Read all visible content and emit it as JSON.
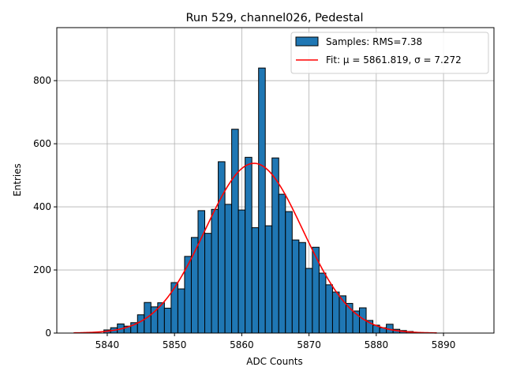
{
  "chart_data": {
    "type": "bar",
    "title": "Run 529, channel026, Pedestal",
    "xlabel": "ADC Counts",
    "ylabel": "Entries",
    "xlim": [
      5832.5,
      5897.5
    ],
    "ylim": [
      0,
      968
    ],
    "xticks": [
      5840,
      5850,
      5860,
      5870,
      5880,
      5890
    ],
    "yticks": [
      0,
      200,
      400,
      600,
      800
    ],
    "grid": true,
    "legend_position": "top-right",
    "series": [
      {
        "name": "Samples: RMS=7.38",
        "kind": "histogram",
        "color": "#1f77b4",
        "edgecolor": "#000000",
        "bin_width": 1,
        "x": [
          5840,
          5841,
          5842,
          5843,
          5844,
          5845,
          5846,
          5847,
          5848,
          5849,
          5850,
          5851,
          5852,
          5853,
          5854,
          5855,
          5856,
          5857,
          5858,
          5859,
          5860,
          5861,
          5862,
          5863,
          5864,
          5865,
          5866,
          5867,
          5868,
          5869,
          5870,
          5871,
          5872,
          5873,
          5874,
          5875,
          5876,
          5877,
          5878,
          5879,
          5880,
          5881,
          5882,
          5883,
          5884,
          5885
        ],
        "values": [
          10,
          17,
          29,
          22,
          33,
          58,
          97,
          83,
          96,
          79,
          160,
          140,
          243,
          303,
          388,
          316,
          392,
          543,
          408,
          646,
          390,
          557,
          334,
          840,
          340,
          555,
          440,
          385,
          295,
          287,
          205,
          272,
          190,
          153,
          130,
          118,
          94,
          70,
          80,
          40,
          25,
          17,
          28,
          12,
          8,
          5
        ]
      },
      {
        "name": "Fit: μ = 5861.819, σ = 7.272",
        "kind": "gaussian-fit",
        "color": "#ff0000",
        "mu": 5861.819,
        "sigma": 7.272,
        "amplitude": 538,
        "x_range": [
          5835,
          5889
        ]
      }
    ]
  }
}
